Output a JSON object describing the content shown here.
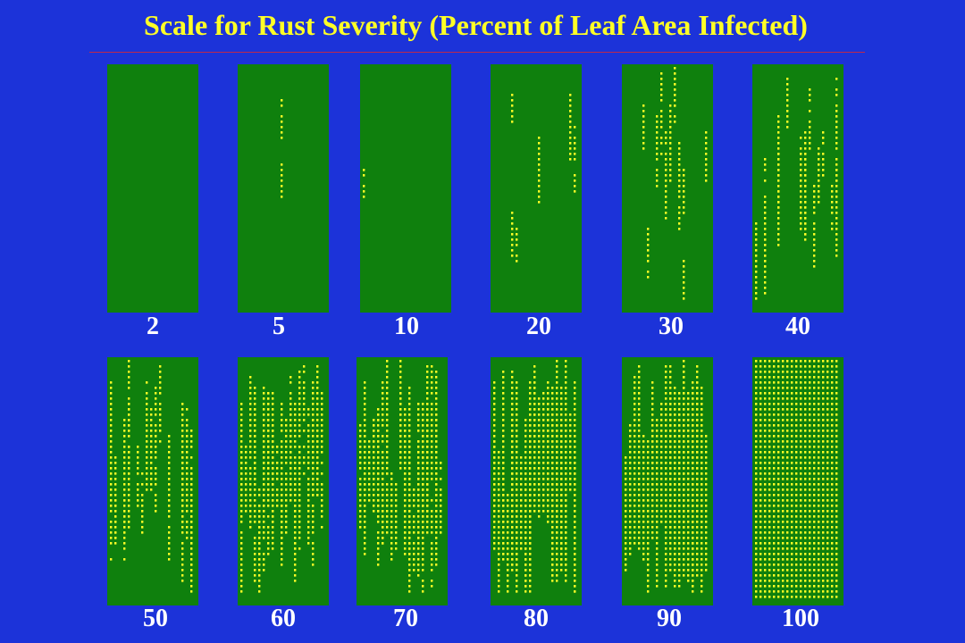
{
  "title": "Scale for Rust Severity (Percent of Leaf Area Infected)",
  "colors": {
    "background": "#1c33d9",
    "leaf": "#0f800d",
    "pustule": "#ffff26",
    "title_text": "#ffff26",
    "label_text": "#ffffff",
    "rule": "#c0294a"
  },
  "panels": [
    {
      "label": "2",
      "severity_percent": 2
    },
    {
      "label": "5",
      "severity_percent": 5
    },
    {
      "label": "10",
      "severity_percent": 10
    },
    {
      "label": "20",
      "severity_percent": 20
    },
    {
      "label": "30",
      "severity_percent": 30
    },
    {
      "label": "40",
      "severity_percent": 40
    },
    {
      "label": "50",
      "severity_percent": 50
    },
    {
      "label": "60",
      "severity_percent": 60
    },
    {
      "label": "70",
      "severity_percent": 70
    },
    {
      "label": "80",
      "severity_percent": 80
    },
    {
      "label": "90",
      "severity_percent": 90
    },
    {
      "label": "100",
      "severity_percent": 100
    }
  ]
}
